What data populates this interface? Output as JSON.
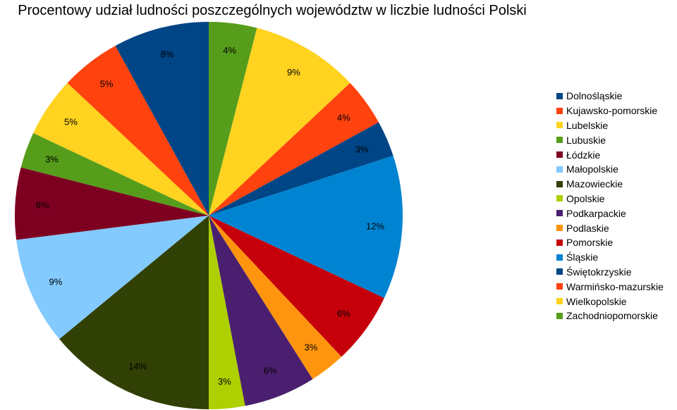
{
  "chart_data": {
    "type": "pie",
    "title": "Procentowy udział ludności poszczególnych województw w liczbie ludności Polski",
    "legend_position": "right",
    "start_angle_deg": 0,
    "direction": "clockwise",
    "slices_in_drawing_order": [
      {
        "category": "Zachodniopomorskie",
        "value": 4,
        "label": "4%",
        "color": "#579d1c"
      },
      {
        "category": "Wielkopolskie",
        "value": 9,
        "label": "9%",
        "color": "#ffd320"
      },
      {
        "category": "Warmińsko-mazurskie",
        "value": 4,
        "label": "4%",
        "color": "#ff420e"
      },
      {
        "category": "Świętokrzyskie",
        "value": 3,
        "label": "3%",
        "color": "#004586"
      },
      {
        "category": "Śląskie",
        "value": 12,
        "label": "12%",
        "color": "#0084d1"
      },
      {
        "category": "Pomorskie",
        "value": 6,
        "label": "6%",
        "color": "#c5000b"
      },
      {
        "category": "Podlaskie",
        "value": 3,
        "label": "3%",
        "color": "#ff950e"
      },
      {
        "category": "Podkarpackie",
        "value": 6,
        "label": "6%",
        "color": "#4b1f6f"
      },
      {
        "category": "Opolskie",
        "value": 3,
        "label": "3%",
        "color": "#aecf00"
      },
      {
        "category": "Mazowieckie",
        "value": 14,
        "label": "14%",
        "color": "#314004"
      },
      {
        "category": "Małopolskie",
        "value": 9,
        "label": "9%",
        "color": "#83caff"
      },
      {
        "category": "Łódzkie",
        "value": 6,
        "label": "6%",
        "color": "#7e0021"
      },
      {
        "category": "Lubuskie",
        "value": 3,
        "label": "3%",
        "color": "#579d1c"
      },
      {
        "category": "Lubelskie",
        "value": 5,
        "label": "5%",
        "color": "#ffd320"
      },
      {
        "category": "Kujawsko-pomorskie",
        "value": 5,
        "label": "5%",
        "color": "#ff420e"
      },
      {
        "category": "Dolnośląskie",
        "value": 8,
        "label": "8%",
        "color": "#004586"
      }
    ],
    "legend": [
      {
        "label": "Dolnośląskie",
        "color": "#004586"
      },
      {
        "label": "Kujawsko-pomorskie",
        "color": "#ff420e"
      },
      {
        "label": "Lubelskie",
        "color": "#ffd320"
      },
      {
        "label": "Lubuskie",
        "color": "#579d1c"
      },
      {
        "label": "Łódzkie",
        "color": "#7e0021"
      },
      {
        "label": "Małopolskie",
        "color": "#83caff"
      },
      {
        "label": "Mazowieckie",
        "color": "#314004"
      },
      {
        "label": "Opolskie",
        "color": "#aecf00"
      },
      {
        "label": "Podkarpackie",
        "color": "#4b1f6f"
      },
      {
        "label": "Podlaskie",
        "color": "#ff950e"
      },
      {
        "label": "Pomorskie",
        "color": "#c5000b"
      },
      {
        "label": "Śląskie",
        "color": "#0084d1"
      },
      {
        "label": "Świętokrzyskie",
        "color": "#004586"
      },
      {
        "label": "Warmińsko-mazurskie",
        "color": "#ff420e"
      },
      {
        "label": "Wielkopolskie",
        "color": "#ffd320"
      },
      {
        "label": "Zachodniopomorskie",
        "color": "#579d1c"
      }
    ]
  }
}
